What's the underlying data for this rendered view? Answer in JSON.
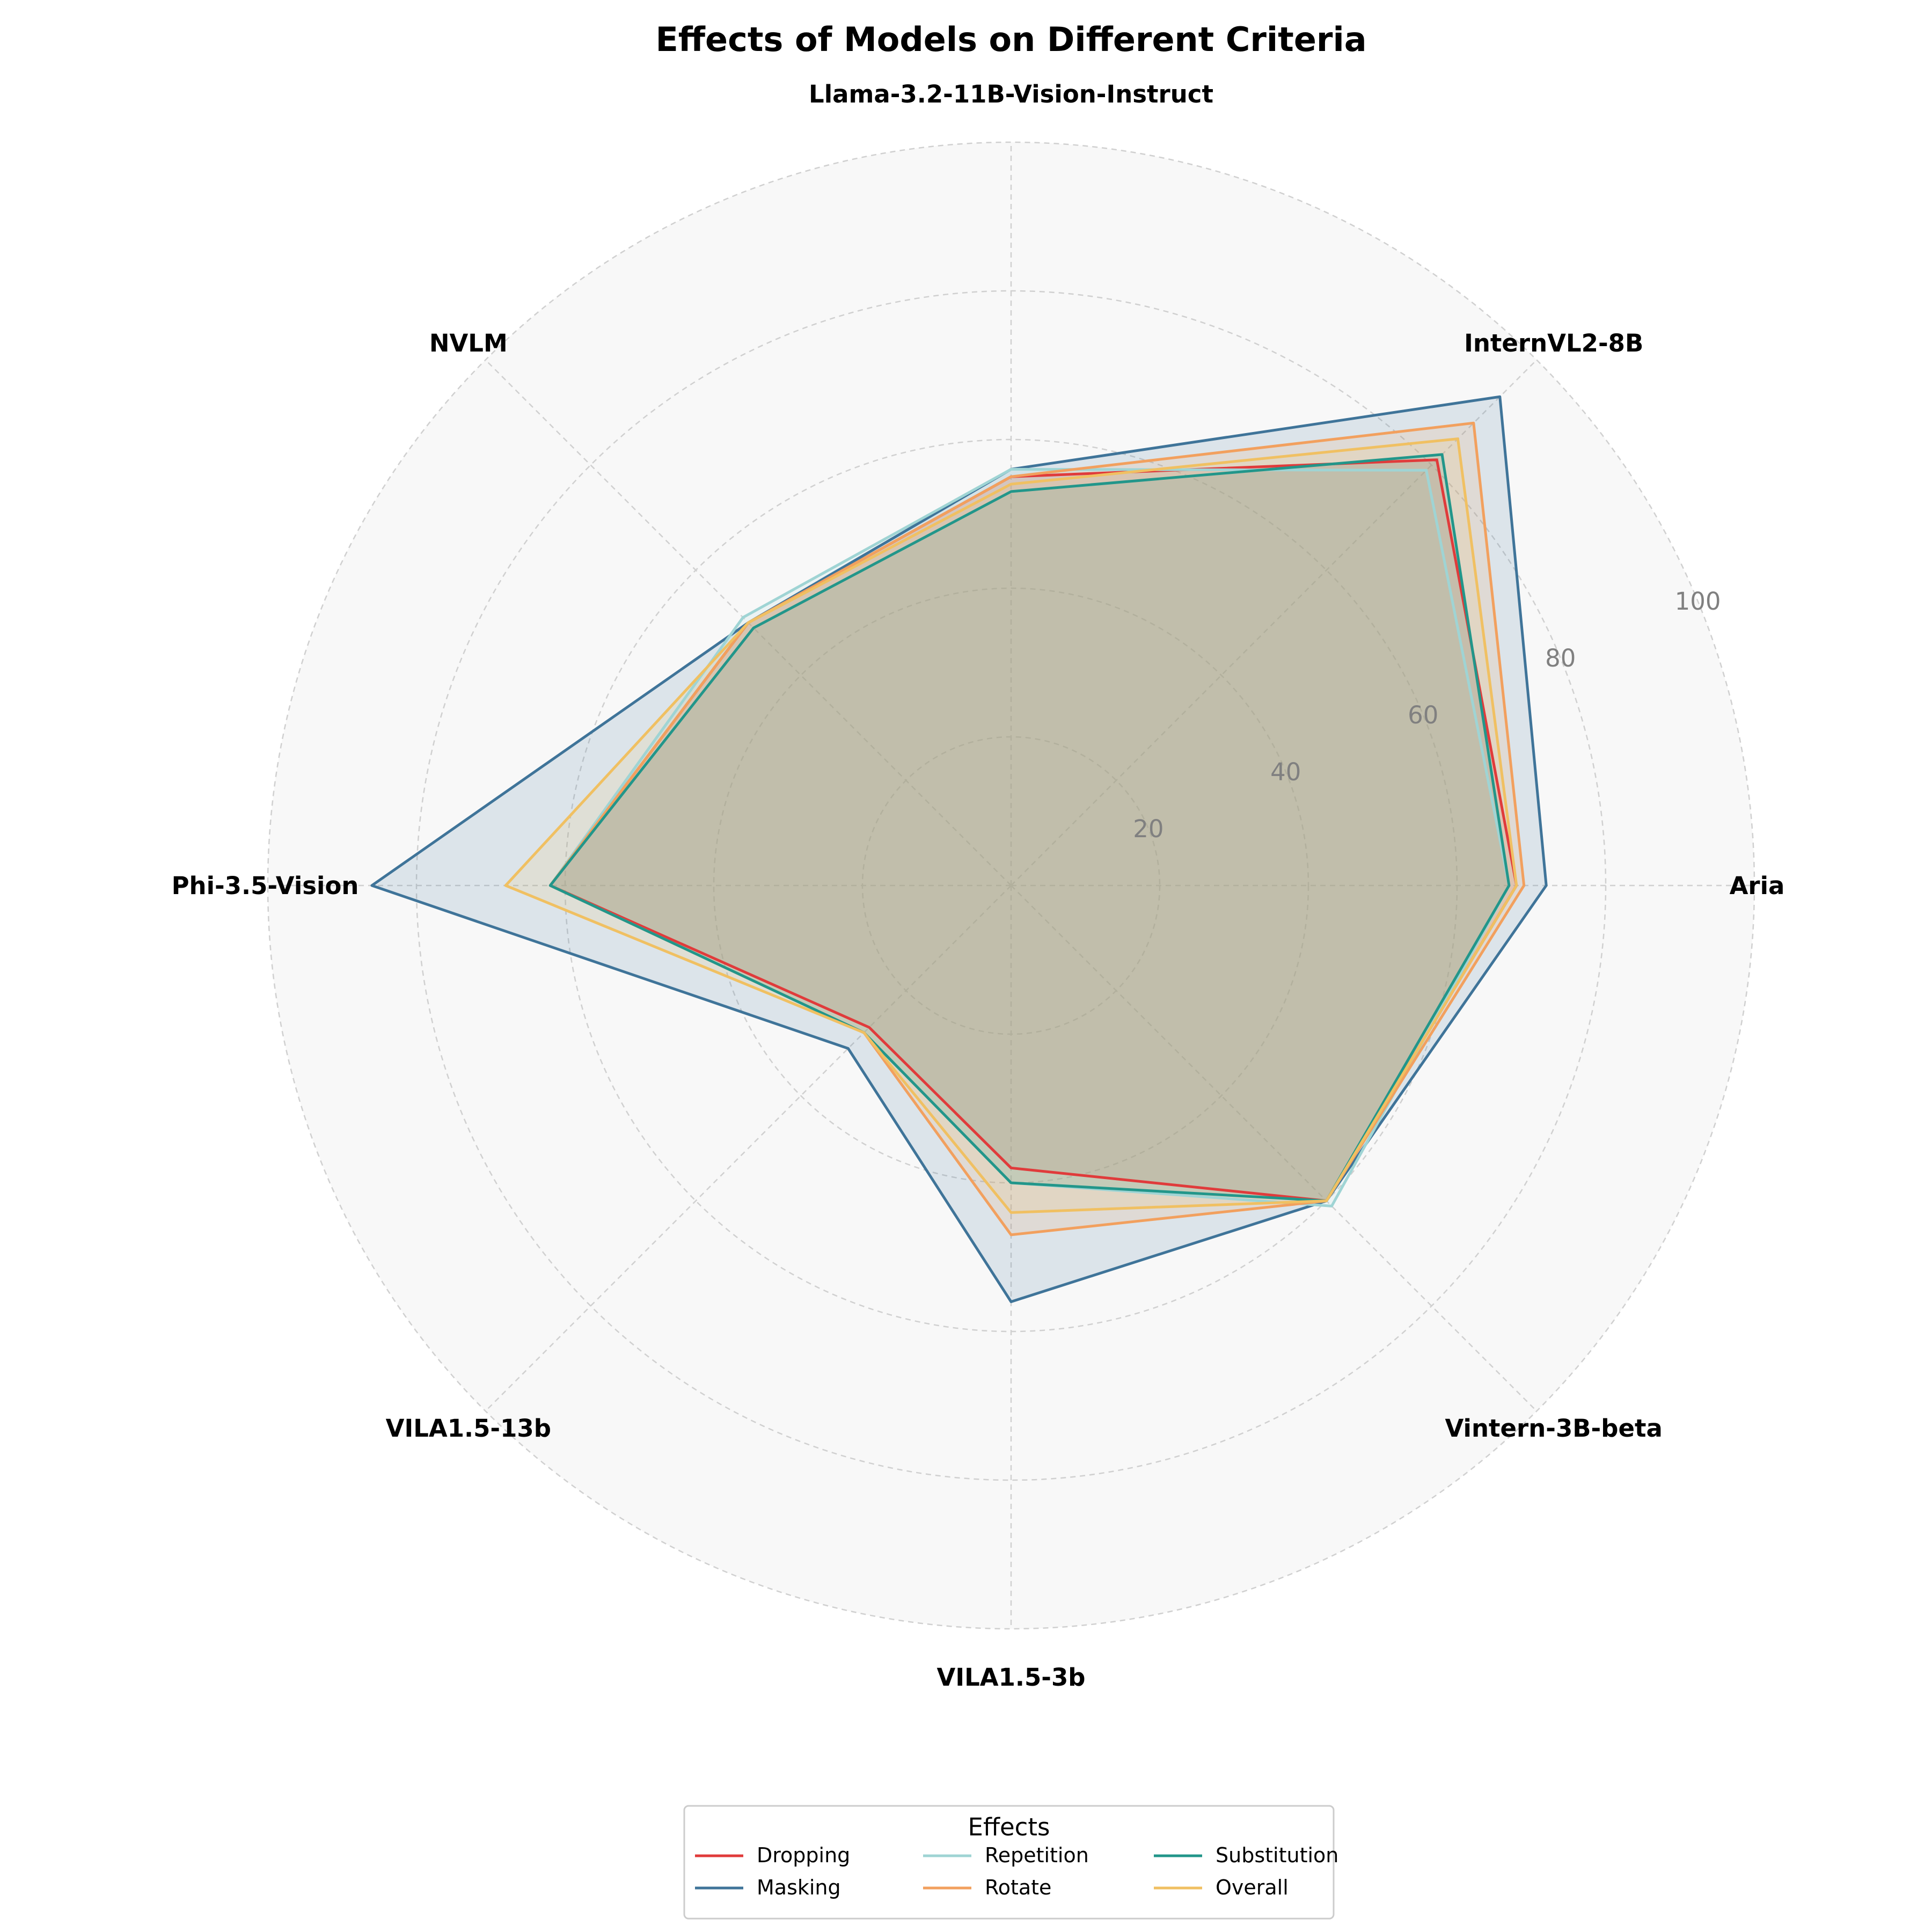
{
  "chart_data": {
    "type": "radar",
    "title": "Effects of Models on Different Criteria",
    "categories": [
      "Aria",
      "InternVL2-8B",
      "Llama-3.2-11B-Vision-Instruct",
      "NVLM",
      "Phi-3.5-Vision",
      "VILA1.5-13b",
      "VILA1.5-3b",
      "Vintern-3B-beta"
    ],
    "rlim": [
      0,
      100
    ],
    "rticks": [
      20,
      40,
      60,
      80,
      100
    ],
    "grid": true,
    "legend": {
      "title": "Effects",
      "position": "bottom-center",
      "columns": 3
    },
    "series": [
      {
        "name": "Dropping",
        "color": "#e03b3b",
        "values": [
          68,
          81,
          55,
          50,
          62,
          27,
          38,
          60
        ]
      },
      {
        "name": "Masking",
        "color": "#3f7499",
        "values": [
          72,
          93,
          56,
          50,
          86,
          31,
          56,
          60
        ]
      },
      {
        "name": "Repetition",
        "color": "#9fd4d4",
        "values": [
          67,
          79,
          56,
          51,
          62,
          28,
          40,
          61
        ]
      },
      {
        "name": "Rotate",
        "color": "#f2a05e",
        "values": [
          69,
          88,
          55,
          50,
          62,
          28,
          47,
          60
        ]
      },
      {
        "name": "Substitution",
        "color": "#22968a",
        "values": [
          67,
          82,
          53,
          49,
          62,
          28,
          40,
          60
        ]
      },
      {
        "name": "Overall",
        "color": "#f0c062",
        "values": [
          68,
          85,
          54,
          50,
          68,
          28,
          44,
          60
        ]
      }
    ]
  }
}
